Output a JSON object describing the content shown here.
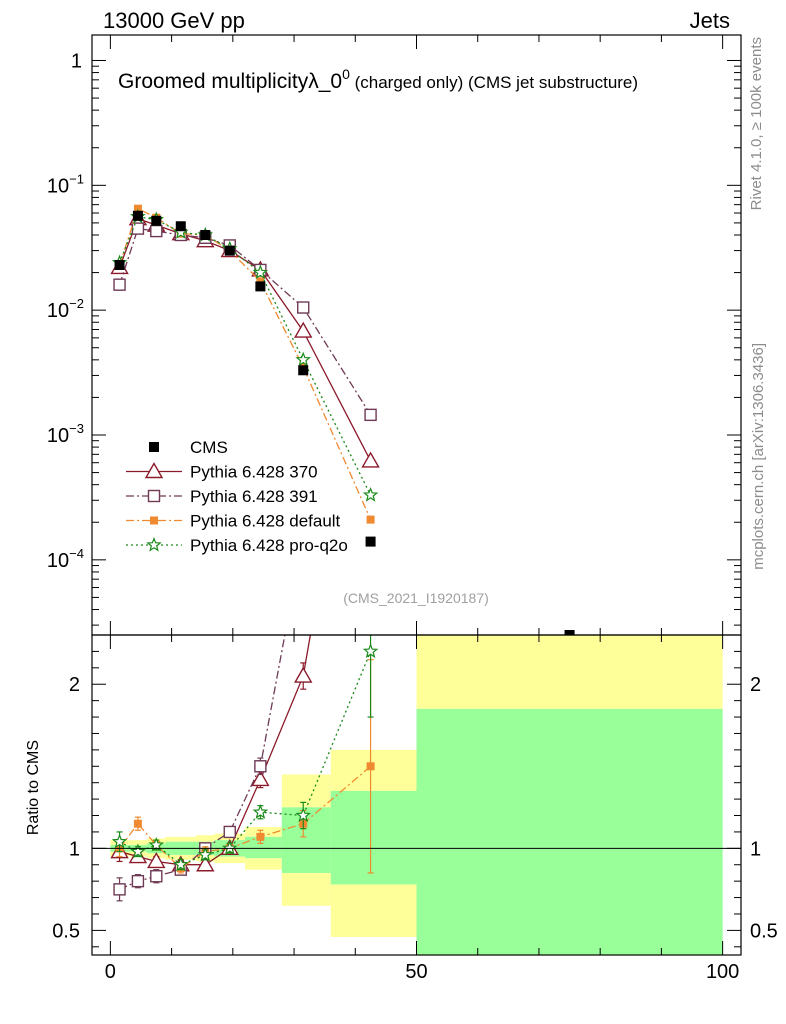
{
  "header": {
    "left": "13000 GeV pp",
    "right": "Jets"
  },
  "side_labels": {
    "rivet": "Rivet 4.1.0, ≥ 100k events",
    "mcplots": "mcplots.cern.ch [arXiv:1306.3436]"
  },
  "chart_data": {
    "type": "line",
    "title": "Groomed multiplicityλ_0",
    "title_superscript": "0",
    "title_suffix": " (charged only) (CMS jet substructure)",
    "analysis_id": "(CMS_2021_I1920187)",
    "x_axis": {
      "range": [
        -3,
        103
      ],
      "ticks": [
        0,
        50,
        100
      ],
      "tick_labels": [
        "0",
        "50",
        "100"
      ]
    },
    "main_axis": {
      "scale": "log",
      "range": [
        2.5e-05,
        1.6
      ],
      "tick_values": [
        1,
        0.1,
        0.01,
        0.001,
        0.0001
      ],
      "tick_labels": [
        {
          "base": "1",
          "exp": ""
        },
        {
          "base": "10",
          "exp": "−1"
        },
        {
          "base": "10",
          "exp": "−2"
        },
        {
          "base": "10",
          "exp": "−3"
        },
        {
          "base": "10",
          "exp": "−4"
        }
      ]
    },
    "ratio_axis": {
      "label": "Ratio to CMS",
      "range": [
        0.35,
        2.3
      ],
      "ticks": [
        0.5,
        1,
        2
      ],
      "tick_labels": [
        "0.5",
        "1",
        "2"
      ]
    },
    "data_points": {
      "name": "CMS",
      "x": [
        1.5,
        4.5,
        7.5,
        11.5,
        15.5,
        19.5,
        24.5,
        31.5,
        42.5,
        75
      ],
      "y": [
        0.023,
        0.057,
        0.052,
        0.047,
        0.04,
        0.03,
        0.0155,
        0.0033,
        0.00014,
        1.8e-05
      ]
    },
    "bands": [
      {
        "x0": 0,
        "x1": 3,
        "g_lo": 0.98,
        "g_hi": 1.02,
        "y_lo": 0.95,
        "y_hi": 1.05
      },
      {
        "x0": 3,
        "x1": 6,
        "g_lo": 0.98,
        "g_hi": 1.02,
        "y_lo": 0.95,
        "y_hi": 1.05
      },
      {
        "x0": 6,
        "x1": 9,
        "g_lo": 0.97,
        "g_hi": 1.03,
        "y_lo": 0.94,
        "y_hi": 1.06
      },
      {
        "x0": 9,
        "x1": 14,
        "g_lo": 0.96,
        "g_hi": 1.04,
        "y_lo": 0.93,
        "y_hi": 1.07
      },
      {
        "x0": 14,
        "x1": 17,
        "g_lo": 0.96,
        "g_hi": 1.04,
        "y_lo": 0.92,
        "y_hi": 1.08
      },
      {
        "x0": 17,
        "x1": 22,
        "g_lo": 0.95,
        "g_hi": 1.05,
        "y_lo": 0.91,
        "y_hi": 1.09
      },
      {
        "x0": 22,
        "x1": 28,
        "g_lo": 0.94,
        "g_hi": 1.07,
        "y_lo": 0.87,
        "y_hi": 1.13
      },
      {
        "x0": 28,
        "x1": 36,
        "g_lo": 0.85,
        "g_hi": 1.25,
        "y_lo": 0.65,
        "y_hi": 1.45
      },
      {
        "x0": 36,
        "x1": 50,
        "g_lo": 0.78,
        "g_hi": 1.35,
        "y_lo": 0.46,
        "y_hi": 1.6
      },
      {
        "x0": 50,
        "x1": 100,
        "g_lo": 0.35,
        "g_hi": 1.85,
        "y_lo": 0.35,
        "y_hi": 2.3
      }
    ],
    "series": [
      {
        "name": "Pythia 6.428 370",
        "color": "#8b1a2b",
        "dash": "",
        "marker": "triangle",
        "x": [
          1.5,
          4.5,
          7.5,
          11.5,
          15.5,
          19.5,
          24.5,
          31.5,
          42.5
        ],
        "y": [
          0.022,
          0.054,
          0.048,
          0.041,
          0.036,
          0.03,
          0.021,
          0.0068,
          0.00062
        ],
        "ratio": [
          0.98,
          0.95,
          0.92,
          0.9,
          0.9,
          1.0,
          1.42,
          2.05,
          4.4
        ],
        "ratio_err": [
          0.06,
          0.03,
          0.03,
          0.03,
          0.03,
          0.03,
          0.05,
          0.08,
          0.3
        ]
      },
      {
        "name": "Pythia 6.428 391",
        "color": "#6e3a55",
        "dash": "8 3 2 3",
        "marker": "square",
        "x": [
          1.5,
          4.5,
          7.5,
          11.5,
          15.5,
          19.5,
          24.5,
          31.5,
          42.5
        ],
        "y": [
          0.016,
          0.045,
          0.043,
          0.04,
          0.038,
          0.033,
          0.021,
          0.0105,
          0.00145
        ],
        "ratio": [
          0.75,
          0.8,
          0.83,
          0.87,
          1.0,
          1.1,
          1.5,
          2.9,
          9.0
        ],
        "ratio_err": [
          0.07,
          0.04,
          0.04,
          0.03,
          0.03,
          0.03,
          0.05,
          0.1,
          0.5
        ]
      },
      {
        "name": "Pythia 6.428 default",
        "color": "#f08a30",
        "dash": "8 3 2 3",
        "marker": "smallsquare",
        "x": [
          1.5,
          4.5,
          7.5,
          11.5,
          15.5,
          19.5,
          24.5,
          31.5,
          42.5
        ],
        "y": [
          0.023,
          0.065,
          0.055,
          0.041,
          0.04,
          0.03,
          0.017,
          0.0035,
          0.00021
        ],
        "ratio": [
          1.0,
          1.15,
          1.02,
          0.88,
          0.98,
          1.0,
          1.07,
          1.15,
          1.5
        ],
        "ratio_err": [
          0.05,
          0.04,
          0.03,
          0.03,
          0.03,
          0.03,
          0.04,
          0.08,
          0.65
        ]
      },
      {
        "name": "Pythia 6.428 pro-q2o",
        "color": "#1a8a1a",
        "dash": "2 3",
        "marker": "star",
        "x": [
          1.5,
          4.5,
          7.5,
          11.5,
          15.5,
          19.5,
          24.5,
          31.5,
          42.5
        ],
        "y": [
          0.024,
          0.056,
          0.053,
          0.042,
          0.04,
          0.031,
          0.02,
          0.004,
          0.00033
        ],
        "ratio": [
          1.04,
          0.98,
          1.02,
          0.9,
          0.96,
          1.0,
          1.22,
          1.2,
          2.2
        ],
        "ratio_err": [
          0.06,
          0.03,
          0.03,
          0.03,
          0.03,
          0.03,
          0.04,
          0.08,
          0.4
        ]
      }
    ],
    "legend": {
      "placement": "lower-left",
      "entries": [
        "CMS",
        "Pythia 6.428 370",
        "Pythia 6.428 391",
        "Pythia 6.428 default",
        "Pythia 6.428 pro-q2o"
      ]
    },
    "band_colors": {
      "inner": "#99ff99",
      "outer": "#ffff99"
    }
  }
}
